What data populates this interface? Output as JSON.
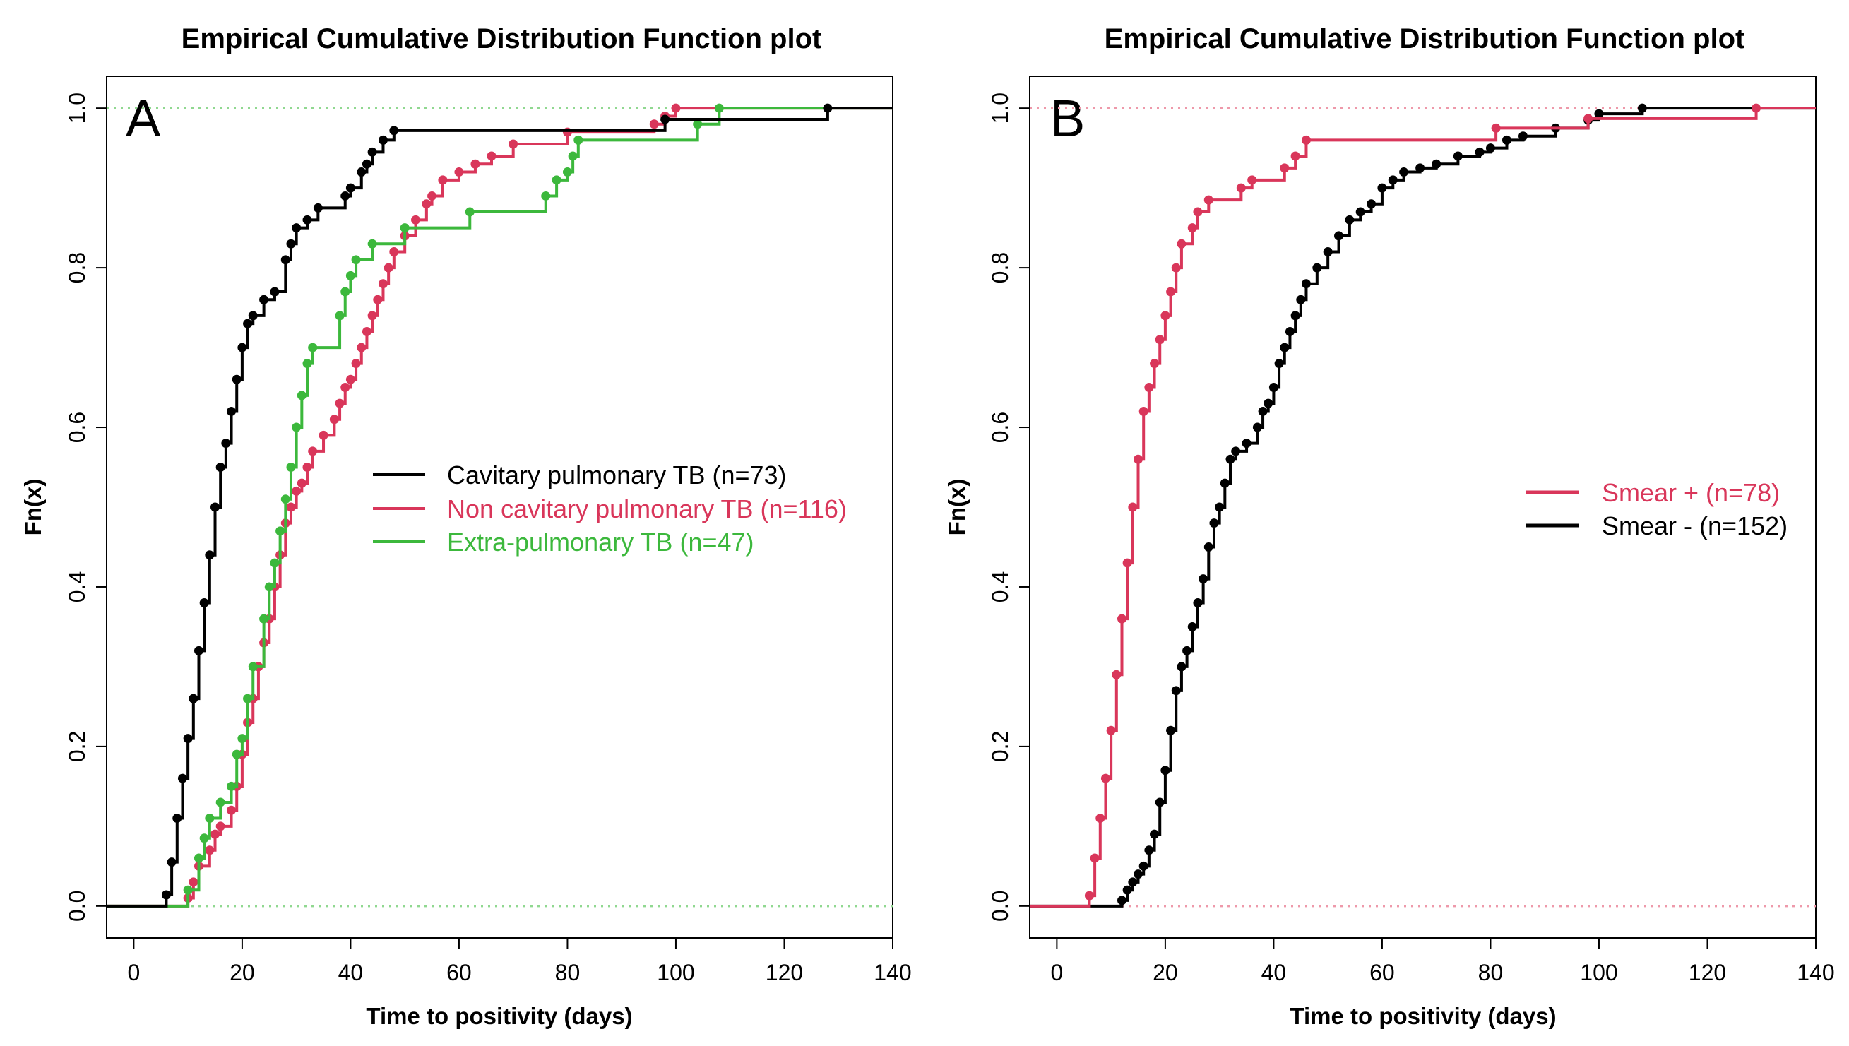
{
  "chart_data": [
    {
      "type": "line",
      "subtype": "ecdf-step",
      "panel_label": "A",
      "title": "Empirical Cumulative Distribution Function plot",
      "xlabel": "Time to positivity (days)",
      "ylabel": "Fn(x)",
      "xlim": [
        -5,
        140
      ],
      "ylim": [
        -0.04,
        1.04
      ],
      "xticks": [
        0,
        20,
        40,
        60,
        80,
        100,
        120,
        140
      ],
      "yticks": [
        0.0,
        0.2,
        0.4,
        0.6,
        0.8,
        1.0
      ],
      "xtick_labels": [
        "0",
        "20",
        "40",
        "60",
        "80",
        "100",
        "120",
        "140"
      ],
      "ytick_labels": [
        "0.0",
        "0.2",
        "0.4",
        "0.6",
        "0.8",
        "1.0"
      ],
      "legend_position": "center-right",
      "reference_lines": {
        "y": [
          0,
          1
        ],
        "style": "dotted",
        "color": "#90d890"
      },
      "series": [
        {
          "name": "Cavitary pulmonary TB (n=73)",
          "color": "#000000",
          "points": [
            [
              6,
              0.014
            ],
            [
              7,
              0.055
            ],
            [
              8,
              0.11
            ],
            [
              9,
              0.16
            ],
            [
              10,
              0.21
            ],
            [
              11,
              0.26
            ],
            [
              12,
              0.32
            ],
            [
              13,
              0.38
            ],
            [
              14,
              0.44
            ],
            [
              15,
              0.5
            ],
            [
              16,
              0.55
            ],
            [
              17,
              0.58
            ],
            [
              18,
              0.62
            ],
            [
              19,
              0.66
            ],
            [
              20,
              0.7
            ],
            [
              21,
              0.73
            ],
            [
              22,
              0.74
            ],
            [
              24,
              0.76
            ],
            [
              26,
              0.77
            ],
            [
              28,
              0.81
            ],
            [
              29,
              0.83
            ],
            [
              30,
              0.85
            ],
            [
              32,
              0.86
            ],
            [
              34,
              0.875
            ],
            [
              39,
              0.89
            ],
            [
              40,
              0.9
            ],
            [
              42,
              0.92
            ],
            [
              43,
              0.93
            ],
            [
              44,
              0.945
            ],
            [
              46,
              0.96
            ],
            [
              48,
              0.972
            ],
            [
              98,
              0.986
            ],
            [
              128,
              1.0
            ]
          ]
        },
        {
          "name": "Non cavitary pulmonary TB (n=116)",
          "color": "#d9365a",
          "points": [
            [
              10,
              0.01
            ],
            [
              11,
              0.03
            ],
            [
              12,
              0.05
            ],
            [
              14,
              0.07
            ],
            [
              15,
              0.09
            ],
            [
              16,
              0.1
            ],
            [
              18,
              0.12
            ],
            [
              19,
              0.15
            ],
            [
              20,
              0.19
            ],
            [
              21,
              0.23
            ],
            [
              22,
              0.26
            ],
            [
              23,
              0.3
            ],
            [
              24,
              0.33
            ],
            [
              25,
              0.36
            ],
            [
              26,
              0.4
            ],
            [
              27,
              0.44
            ],
            [
              28,
              0.48
            ],
            [
              29,
              0.5
            ],
            [
              30,
              0.52
            ],
            [
              31,
              0.53
            ],
            [
              32,
              0.55
            ],
            [
              33,
              0.57
            ],
            [
              35,
              0.59
            ],
            [
              37,
              0.61
            ],
            [
              38,
              0.63
            ],
            [
              39,
              0.65
            ],
            [
              40,
              0.66
            ],
            [
              41,
              0.68
            ],
            [
              42,
              0.7
            ],
            [
              43,
              0.72
            ],
            [
              44,
              0.74
            ],
            [
              45,
              0.76
            ],
            [
              46,
              0.78
            ],
            [
              47,
              0.8
            ],
            [
              48,
              0.82
            ],
            [
              50,
              0.84
            ],
            [
              52,
              0.86
            ],
            [
              54,
              0.88
            ],
            [
              55,
              0.89
            ],
            [
              57,
              0.91
            ],
            [
              60,
              0.92
            ],
            [
              63,
              0.93
            ],
            [
              66,
              0.94
            ],
            [
              70,
              0.955
            ],
            [
              80,
              0.97
            ],
            [
              96,
              0.98
            ],
            [
              98,
              0.99
            ],
            [
              100,
              1.0
            ]
          ]
        },
        {
          "name": "Extra-pulmonary TB (n=47)",
          "color": "#3cb83c",
          "points": [
            [
              10,
              0.02
            ],
            [
              12,
              0.06
            ],
            [
              13,
              0.085
            ],
            [
              14,
              0.11
            ],
            [
              16,
              0.13
            ],
            [
              18,
              0.15
            ],
            [
              19,
              0.19
            ],
            [
              20,
              0.21
            ],
            [
              21,
              0.26
            ],
            [
              22,
              0.3
            ],
            [
              24,
              0.36
            ],
            [
              25,
              0.4
            ],
            [
              26,
              0.43
            ],
            [
              27,
              0.47
            ],
            [
              28,
              0.51
            ],
            [
              29,
              0.55
            ],
            [
              30,
              0.6
            ],
            [
              31,
              0.64
            ],
            [
              32,
              0.68
            ],
            [
              33,
              0.7
            ],
            [
              38,
              0.74
            ],
            [
              39,
              0.77
            ],
            [
              40,
              0.79
            ],
            [
              41,
              0.81
            ],
            [
              44,
              0.83
            ],
            [
              50,
              0.85
            ],
            [
              62,
              0.87
            ],
            [
              76,
              0.89
            ],
            [
              78,
              0.91
            ],
            [
              80,
              0.92
            ],
            [
              81,
              0.94
            ],
            [
              82,
              0.96
            ],
            [
              104,
              0.98
            ],
            [
              108,
              1.0
            ]
          ]
        }
      ]
    },
    {
      "type": "line",
      "subtype": "ecdf-step",
      "panel_label": "B",
      "title": "Empirical Cumulative Distribution Function plot",
      "xlabel": "Time to positivity (days)",
      "ylabel": "Fn(x)",
      "xlim": [
        -5,
        140
      ],
      "ylim": [
        -0.04,
        1.04
      ],
      "xticks": [
        0,
        20,
        40,
        60,
        80,
        100,
        120,
        140
      ],
      "yticks": [
        0.0,
        0.2,
        0.4,
        0.6,
        0.8,
        1.0
      ],
      "xtick_labels": [
        "0",
        "20",
        "40",
        "60",
        "80",
        "100",
        "120",
        "140"
      ],
      "ytick_labels": [
        "0.0",
        "0.2",
        "0.4",
        "0.6",
        "0.8",
        "1.0"
      ],
      "legend_position": "center-right",
      "reference_lines": {
        "y": [
          0,
          1
        ],
        "style": "dotted",
        "color": "#ee99aa"
      },
      "series": [
        {
          "name": "Smear + (n=78)",
          "color": "#d9365a",
          "points": [
            [
              6,
              0.013
            ],
            [
              7,
              0.06
            ],
            [
              8,
              0.11
            ],
            [
              9,
              0.16
            ],
            [
              10,
              0.22
            ],
            [
              11,
              0.29
            ],
            [
              12,
              0.36
            ],
            [
              13,
              0.43
            ],
            [
              14,
              0.5
            ],
            [
              15,
              0.56
            ],
            [
              16,
              0.62
            ],
            [
              17,
              0.65
            ],
            [
              18,
              0.68
            ],
            [
              19,
              0.71
            ],
            [
              20,
              0.74
            ],
            [
              21,
              0.77
            ],
            [
              22,
              0.8
            ],
            [
              23,
              0.83
            ],
            [
              25,
              0.85
            ],
            [
              26,
              0.87
            ],
            [
              28,
              0.885
            ],
            [
              34,
              0.9
            ],
            [
              36,
              0.91
            ],
            [
              42,
              0.925
            ],
            [
              44,
              0.94
            ],
            [
              46,
              0.96
            ],
            [
              81,
              0.975
            ],
            [
              98,
              0.987
            ],
            [
              129,
              1.0
            ]
          ]
        },
        {
          "name": "Smear - (n=152)",
          "color": "#000000",
          "points": [
            [
              12,
              0.007
            ],
            [
              13,
              0.02
            ],
            [
              14,
              0.03
            ],
            [
              15,
              0.04
            ],
            [
              16,
              0.05
            ],
            [
              17,
              0.07
            ],
            [
              18,
              0.09
            ],
            [
              19,
              0.13
            ],
            [
              20,
              0.17
            ],
            [
              21,
              0.22
            ],
            [
              22,
              0.27
            ],
            [
              23,
              0.3
            ],
            [
              24,
              0.32
            ],
            [
              25,
              0.35
            ],
            [
              26,
              0.38
            ],
            [
              27,
              0.41
            ],
            [
              28,
              0.45
            ],
            [
              29,
              0.48
            ],
            [
              30,
              0.5
            ],
            [
              31,
              0.53
            ],
            [
              32,
              0.56
            ],
            [
              33,
              0.57
            ],
            [
              35,
              0.58
            ],
            [
              37,
              0.6
            ],
            [
              38,
              0.62
            ],
            [
              39,
              0.63
            ],
            [
              40,
              0.65
            ],
            [
              41,
              0.68
            ],
            [
              42,
              0.7
            ],
            [
              43,
              0.72
            ],
            [
              44,
              0.74
            ],
            [
              45,
              0.76
            ],
            [
              46,
              0.78
            ],
            [
              48,
              0.8
            ],
            [
              50,
              0.82
            ],
            [
              52,
              0.84
            ],
            [
              54,
              0.86
            ],
            [
              56,
              0.87
            ],
            [
              58,
              0.88
            ],
            [
              60,
              0.9
            ],
            [
              62,
              0.91
            ],
            [
              64,
              0.92
            ],
            [
              67,
              0.925
            ],
            [
              70,
              0.93
            ],
            [
              74,
              0.94
            ],
            [
              78,
              0.945
            ],
            [
              80,
              0.95
            ],
            [
              83,
              0.96
            ],
            [
              86,
              0.965
            ],
            [
              92,
              0.975
            ],
            [
              98,
              0.985
            ],
            [
              100,
              0.993
            ],
            [
              108,
              1.0
            ]
          ]
        }
      ]
    }
  ]
}
